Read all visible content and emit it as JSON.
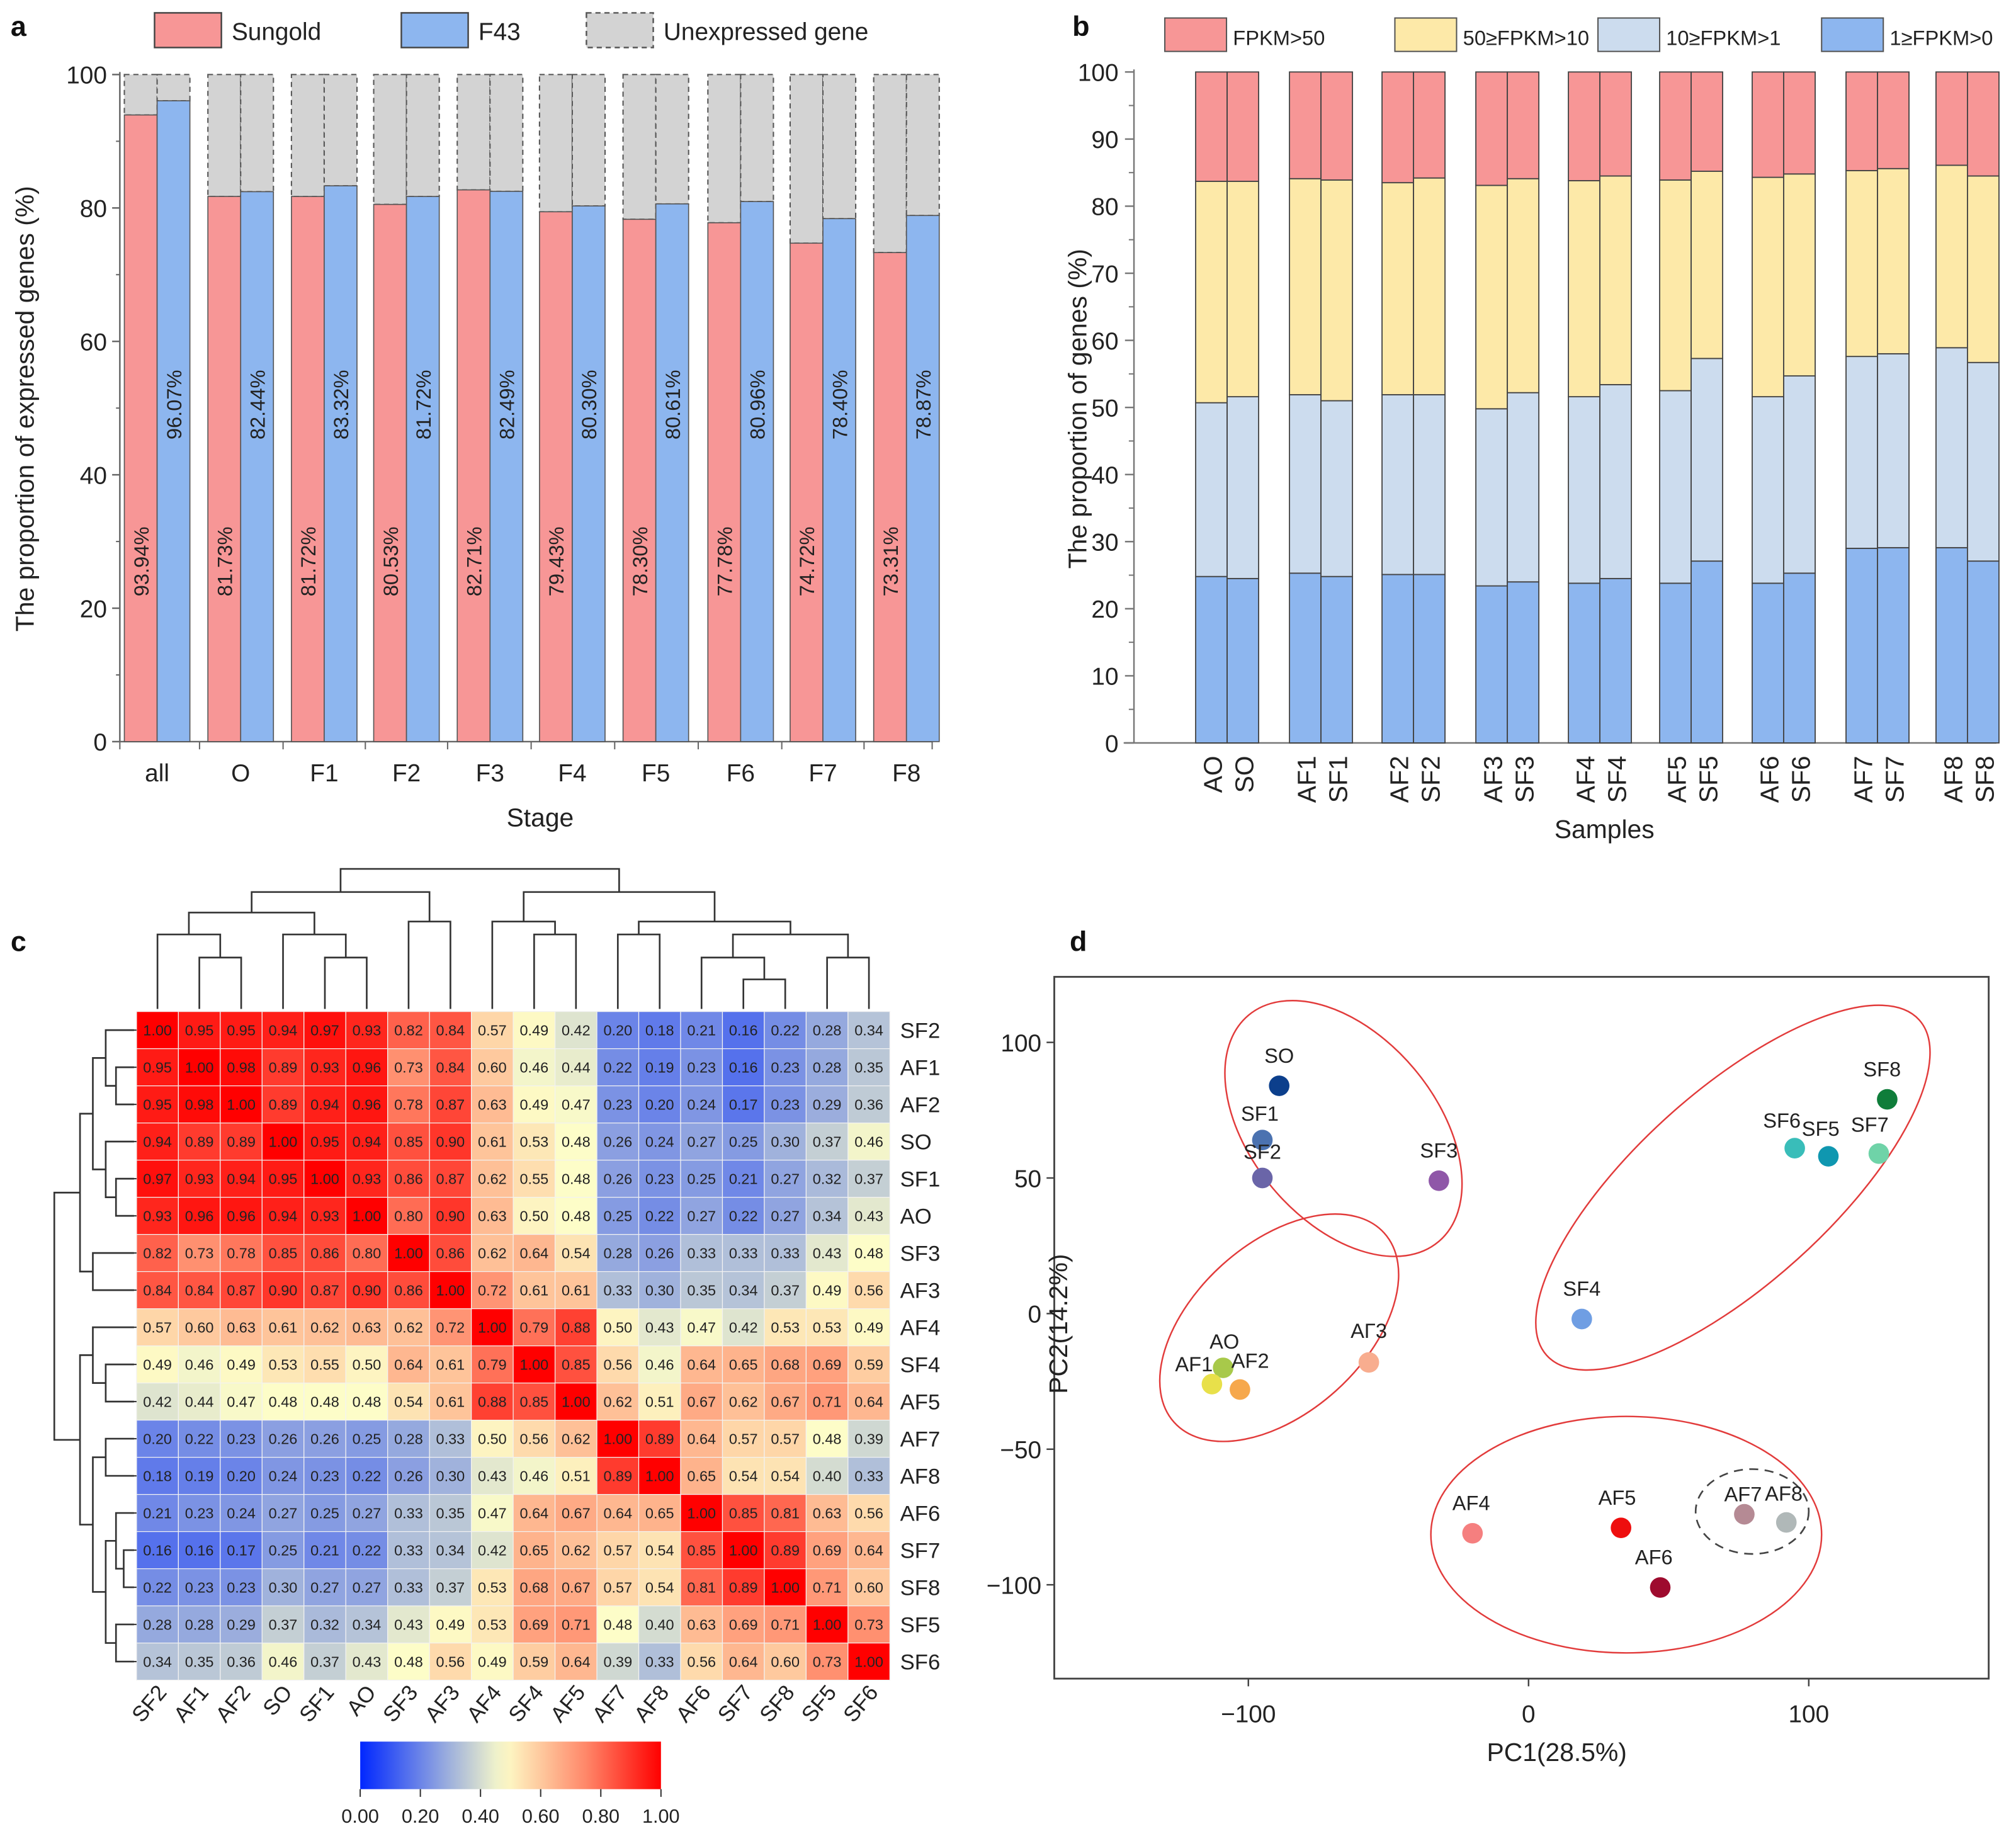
{
  "chart_data": [
    {
      "panel": "a",
      "type": "bar",
      "title": "",
      "xlabel": "Stage",
      "ylabel": "The proportion of expressed genes (%)",
      "ylim": [
        0,
        100
      ],
      "yticks": [
        "0",
        "20",
        "40",
        "60",
        "80",
        "100"
      ],
      "categories": [
        "all",
        "O",
        "F1",
        "F2",
        "F3",
        "F4",
        "F5",
        "F6",
        "F7",
        "F8"
      ],
      "legend_position": "top",
      "legend": [
        "Sungold",
        "F43",
        "Unexpressed gene"
      ],
      "colors": {
        "Sungold": "#f79696",
        "F43": "#8db6ef",
        "Unexpressed gene": "#d3d3d3"
      },
      "series": [
        {
          "name": "Sungold",
          "values": [
            93.94,
            81.73,
            81.72,
            80.53,
            82.71,
            79.43,
            78.3,
            77.78,
            74.72,
            73.31
          ],
          "labels": [
            "93.94%",
            "81.73%",
            "81.72%",
            "80.53%",
            "82.71%",
            "79.43%",
            "78.30%",
            "77.78%",
            "74.72%",
            "73.31%"
          ]
        },
        {
          "name": "F43",
          "values": [
            96.07,
            82.44,
            83.32,
            81.72,
            82.49,
            80.3,
            80.61,
            80.96,
            78.4,
            78.87
          ],
          "labels": [
            "96.07%",
            "82.44%",
            "83.32%",
            "81.72%",
            "82.49%",
            "80.30%",
            "80.61%",
            "80.96%",
            "78.40%",
            "78.87%"
          ]
        }
      ]
    },
    {
      "panel": "b",
      "type": "bar",
      "stacked": true,
      "title": "",
      "xlabel": "Samples",
      "ylabel": "The proportion  of genes (%)",
      "ylim": [
        0,
        100
      ],
      "yticks": [
        "0",
        "10",
        "20",
        "30",
        "40",
        "50",
        "60",
        "70",
        "80",
        "90",
        "100"
      ],
      "categories": [
        "AO",
        "SO",
        "AF1",
        "SF1",
        "AF2",
        "SF2",
        "AF3",
        "SF3",
        "AF4",
        "SF4",
        "AF5",
        "SF5",
        "AF6",
        "SF6",
        "AF7",
        "SF7",
        "AF8",
        "SF8"
      ],
      "legend_position": "top",
      "series": [
        {
          "name": "1≥FPKM>0",
          "color": "#8db6ef",
          "values": [
            24.8,
            24.5,
            25.3,
            24.8,
            25.1,
            25.1,
            23.4,
            24.0,
            23.8,
            24.5,
            23.8,
            27.1,
            23.8,
            25.3,
            29.0,
            29.1,
            29.1,
            27.1
          ]
        },
        {
          "name": "10≥FPKM>1",
          "color": "#ccdcee",
          "values": [
            25.9,
            27.1,
            26.6,
            26.2,
            26.8,
            26.8,
            26.4,
            28.2,
            27.8,
            28.9,
            28.7,
            30.2,
            27.8,
            29.4,
            28.6,
            28.9,
            29.8,
            29.6
          ]
        },
        {
          "name": "50≥FPKM>10",
          "color": "#fde9a8",
          "values": [
            33.0,
            32.1,
            32.2,
            32.9,
            31.6,
            32.3,
            33.3,
            31.9,
            32.2,
            31.1,
            31.4,
            27.9,
            32.7,
            30.1,
            27.7,
            27.6,
            27.2,
            27.8
          ]
        },
        {
          "name": "FPKM>50",
          "color": "#f79696",
          "values": [
            16.3,
            16.3,
            15.9,
            16.1,
            16.5,
            15.8,
            16.9,
            15.9,
            16.2,
            15.5,
            16.1,
            14.8,
            15.7,
            15.2,
            14.7,
            14.4,
            13.9,
            15.5
          ]
        }
      ],
      "legend": [
        "FPKM>50",
        "50≥FPKM>10",
        "10≥FPKM>1",
        "1≥FPKM>0"
      ]
    },
    {
      "panel": "c",
      "type": "heatmap",
      "title": "",
      "row_labels": [
        "SF2",
        "AF1",
        "AF2",
        "SO",
        "SF1",
        "AO",
        "SF3",
        "AF3",
        "AF4",
        "SF4",
        "AF5",
        "AF7",
        "AF8",
        "AF6",
        "SF7",
        "SF8",
        "SF5",
        "SF6"
      ],
      "col_labels": [
        "SF2",
        "AF1",
        "AF2",
        "SO",
        "SF1",
        "AO",
        "SF3",
        "AF3",
        "AF4",
        "SF4",
        "AF5",
        "AF7",
        "AF8",
        "AF6",
        "SF7",
        "SF8",
        "SF5",
        "SF6"
      ],
      "values": [
        [
          1.0,
          0.95,
          0.95,
          0.94,
          0.97,
          0.93,
          0.82,
          0.84,
          0.57,
          0.49,
          0.42,
          0.2,
          0.18,
          0.21,
          0.16,
          0.22,
          0.28,
          0.34
        ],
        [
          0.95,
          1.0,
          0.98,
          0.89,
          0.93,
          0.96,
          0.73,
          0.84,
          0.6,
          0.46,
          0.44,
          0.22,
          0.19,
          0.23,
          0.16,
          0.23,
          0.28,
          0.35
        ],
        [
          0.95,
          0.98,
          1.0,
          0.89,
          0.94,
          0.96,
          0.78,
          0.87,
          0.63,
          0.49,
          0.47,
          0.23,
          0.2,
          0.24,
          0.17,
          0.23,
          0.29,
          0.36
        ],
        [
          0.94,
          0.89,
          0.89,
          1.0,
          0.95,
          0.94,
          0.85,
          0.9,
          0.61,
          0.53,
          0.48,
          0.26,
          0.24,
          0.27,
          0.25,
          0.3,
          0.37,
          0.46
        ],
        [
          0.97,
          0.93,
          0.94,
          0.95,
          1.0,
          0.93,
          0.86,
          0.87,
          0.62,
          0.55,
          0.48,
          0.26,
          0.23,
          0.25,
          0.21,
          0.27,
          0.32,
          0.37
        ],
        [
          0.93,
          0.96,
          0.96,
          0.94,
          0.93,
          1.0,
          0.8,
          0.9,
          0.63,
          0.5,
          0.48,
          0.25,
          0.22,
          0.27,
          0.22,
          0.27,
          0.34,
          0.43
        ],
        [
          0.82,
          0.73,
          0.78,
          0.85,
          0.86,
          0.8,
          1.0,
          0.86,
          0.62,
          0.64,
          0.54,
          0.28,
          0.26,
          0.33,
          0.33,
          0.33,
          0.43,
          0.48
        ],
        [
          0.84,
          0.84,
          0.87,
          0.9,
          0.87,
          0.9,
          0.86,
          1.0,
          0.72,
          0.61,
          0.61,
          0.33,
          0.3,
          0.35,
          0.34,
          0.37,
          0.49,
          0.56
        ],
        [
          0.57,
          0.6,
          0.63,
          0.61,
          0.62,
          0.63,
          0.62,
          0.72,
          1.0,
          0.79,
          0.88,
          0.5,
          0.43,
          0.47,
          0.42,
          0.53,
          0.53,
          0.49
        ],
        [
          0.49,
          0.46,
          0.49,
          0.53,
          0.55,
          0.5,
          0.64,
          0.61,
          0.79,
          1.0,
          0.85,
          0.56,
          0.46,
          0.64,
          0.65,
          0.68,
          0.69,
          0.59
        ],
        [
          0.42,
          0.44,
          0.47,
          0.48,
          0.48,
          0.48,
          0.54,
          0.61,
          0.88,
          0.85,
          1.0,
          0.62,
          0.51,
          0.67,
          0.62,
          0.67,
          0.71,
          0.64
        ],
        [
          0.2,
          0.22,
          0.23,
          0.26,
          0.26,
          0.25,
          0.28,
          0.33,
          0.5,
          0.56,
          0.62,
          1.0,
          0.89,
          0.64,
          0.57,
          0.57,
          0.48,
          0.39
        ],
        [
          0.18,
          0.19,
          0.2,
          0.24,
          0.23,
          0.22,
          0.26,
          0.3,
          0.43,
          0.46,
          0.51,
          0.89,
          1.0,
          0.65,
          0.54,
          0.54,
          0.4,
          0.33
        ],
        [
          0.21,
          0.23,
          0.24,
          0.27,
          0.25,
          0.27,
          0.33,
          0.35,
          0.47,
          0.64,
          0.67,
          0.64,
          0.65,
          1.0,
          0.85,
          0.81,
          0.63,
          0.56
        ],
        [
          0.16,
          0.16,
          0.17,
          0.25,
          0.21,
          0.22,
          0.33,
          0.34,
          0.42,
          0.65,
          0.62,
          0.57,
          0.54,
          0.85,
          1.0,
          0.89,
          0.69,
          0.64
        ],
        [
          0.22,
          0.23,
          0.23,
          0.3,
          0.27,
          0.27,
          0.33,
          0.37,
          0.53,
          0.68,
          0.67,
          0.57,
          0.54,
          0.81,
          0.89,
          1.0,
          0.71,
          0.6
        ],
        [
          0.28,
          0.28,
          0.29,
          0.37,
          0.32,
          0.34,
          0.43,
          0.49,
          0.53,
          0.69,
          0.71,
          0.48,
          0.4,
          0.63,
          0.69,
          0.71,
          1.0,
          0.73
        ],
        [
          0.34,
          0.35,
          0.36,
          0.46,
          0.37,
          0.43,
          0.48,
          0.56,
          0.49,
          0.59,
          0.64,
          0.39,
          0.33,
          0.56,
          0.64,
          0.6,
          0.73,
          1.0
        ]
      ],
      "colorscale": {
        "min": 0.0,
        "max": 1.0,
        "stops": [
          "#0027ff",
          "#fdfdc8",
          "#ff0000"
        ],
        "ticks": [
          "0.00",
          "0.20",
          "0.40",
          "0.60",
          "0.80",
          "1.00"
        ]
      },
      "dendrogram": "hierarchical clustering on rows and columns (same order)"
    },
    {
      "panel": "d",
      "type": "scatter",
      "title": "",
      "xlabel": "PC1(28.5%)",
      "ylabel": "PC2(14.2%)",
      "xlim": [
        -150,
        165
      ],
      "ylim": [
        -130,
        120
      ],
      "xticks": [
        "-100",
        "0",
        "100"
      ],
      "yticks": [
        "-100",
        "-50",
        "0",
        "50",
        "100"
      ],
      "points": [
        {
          "label": "SO",
          "x": -89,
          "y": 84,
          "color": "#0c3f8c"
        },
        {
          "label": "SF1",
          "x": -95,
          "y": 64,
          "color": "#4b72b0"
        },
        {
          "label": "SF2",
          "x": -95,
          "y": 50,
          "color": "#6a65a8"
        },
        {
          "label": "SF3",
          "x": -32,
          "y": 49,
          "color": "#8f57a8"
        },
        {
          "label": "SF4",
          "x": 19,
          "y": -2,
          "color": "#6f9ee3"
        },
        {
          "label": "SF5",
          "x": 107,
          "y": 58,
          "color": "#0f97b0"
        },
        {
          "label": "SF6",
          "x": 95,
          "y": 61,
          "color": "#39bdb9"
        },
        {
          "label": "SF7",
          "x": 125,
          "y": 59,
          "color": "#6fd3a8"
        },
        {
          "label": "SF8",
          "x": 128,
          "y": 79,
          "color": "#0f7d3a"
        },
        {
          "label": "AO",
          "x": -109,
          "y": -20,
          "color": "#a8c94a"
        },
        {
          "label": "AF1",
          "x": -113,
          "y": -26,
          "color": "#e8e04a"
        },
        {
          "label": "AF2",
          "x": -103,
          "y": -28,
          "color": "#f6a84c"
        },
        {
          "label": "AΓ3",
          "x": -57,
          "y": -18,
          "color": "#f8ad8f"
        },
        {
          "label": "AF4",
          "x": -20,
          "y": -81,
          "color": "#f57f7f"
        },
        {
          "label": "AF5",
          "x": 33,
          "y": -79,
          "color": "#ee0e0e"
        },
        {
          "label": "AF6",
          "x": 47,
          "y": -101,
          "color": "#9e0b2e"
        },
        {
          "label": "AF7",
          "x": 77,
          "y": -74,
          "color": "#b58a94"
        },
        {
          "label": "AF8",
          "x": 92,
          "y": -77,
          "color": "#b0b8b8"
        }
      ],
      "ellipses": [
        {
          "group": "SO, SF1, SF2, SF3",
          "style": "solid",
          "color": "#e23b3b"
        },
        {
          "group": "SF4, SF5, SF6, SF7, SF8",
          "style": "solid",
          "color": "#e23b3b"
        },
        {
          "group": "AO, AF1, AF2, AΓ3",
          "style": "solid",
          "color": "#e23b3b"
        },
        {
          "group": "AF4, AF5, AF6, AF7, AF8",
          "style": "solid",
          "color": "#e23b3b"
        },
        {
          "group": "AF7, AF8",
          "style": "dashed",
          "color": "#444444"
        }
      ]
    }
  ],
  "panels": {
    "a": "a",
    "b": "b",
    "c": "c",
    "d": "d"
  }
}
